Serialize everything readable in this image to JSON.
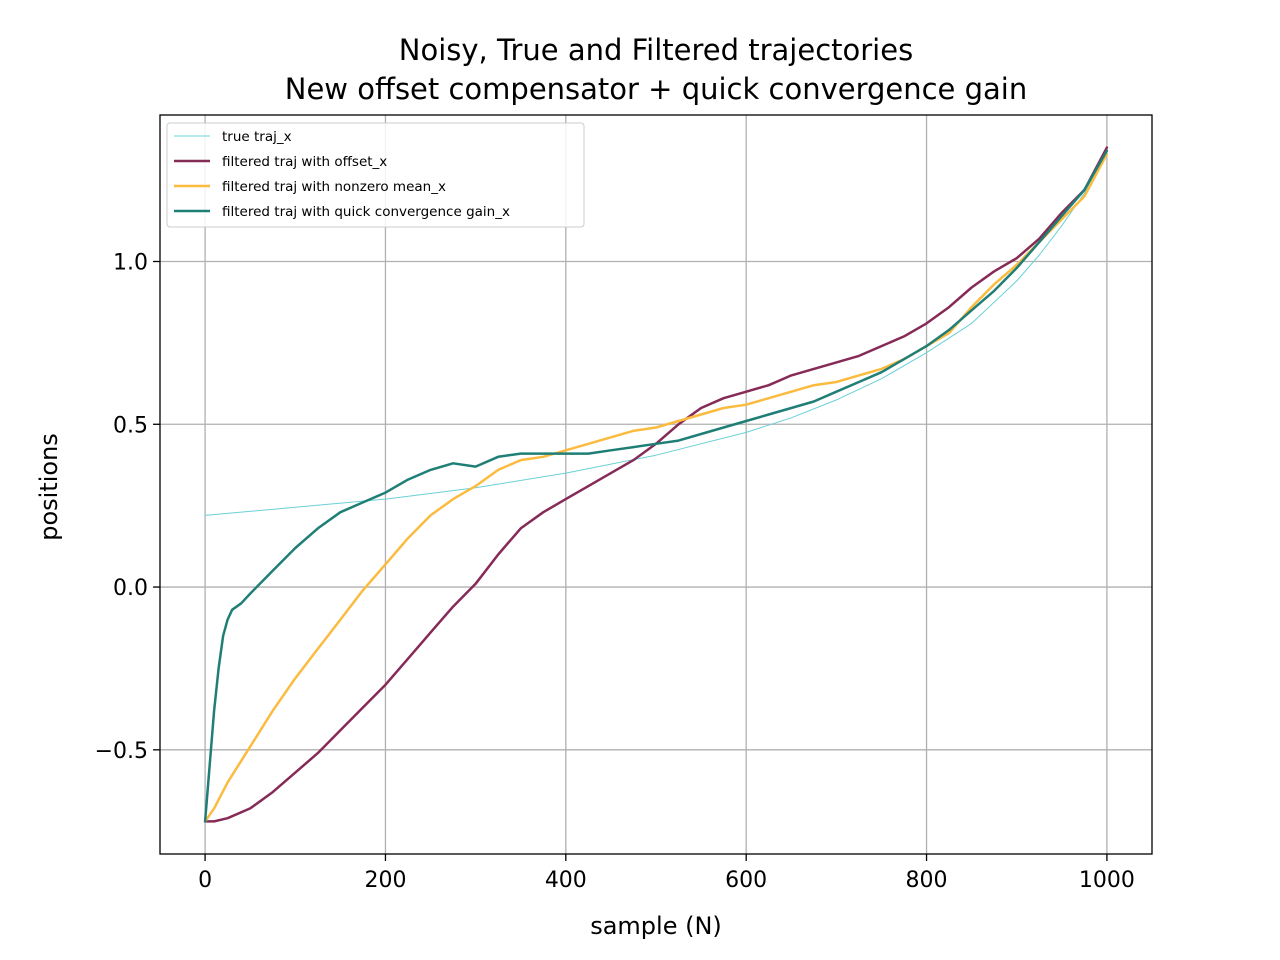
{
  "chart_data": {
    "type": "line",
    "title": [
      "Noisy, True and Filtered trajectories",
      "New offset compensator + quick convergence gain"
    ],
    "xlabel": "sample (N)",
    "ylabel": "positions",
    "xlim": [
      -50,
      1050
    ],
    "ylim": [
      -0.82,
      1.45
    ],
    "xticks": [
      0,
      200,
      400,
      600,
      800,
      1000
    ],
    "xtick_labels": [
      "0",
      "200",
      "400",
      "600",
      "800",
      "1000"
    ],
    "yticks": [
      -0.5,
      0.0,
      0.5,
      1.0
    ],
    "ytick_labels": [
      "−0.5",
      "0.0",
      "0.5",
      "1.0"
    ],
    "grid": true,
    "legend_position": "upper-left",
    "series": [
      {
        "name": "true traj_x",
        "color": "#6bd0d6",
        "width": 1,
        "x": [
          0,
          100,
          200,
          300,
          400,
          500,
          600,
          650,
          700,
          750,
          800,
          850,
          900,
          925,
          950,
          975,
          1000
        ],
        "y": [
          0.22,
          0.245,
          0.27,
          0.305,
          0.35,
          0.405,
          0.475,
          0.52,
          0.575,
          0.64,
          0.72,
          0.81,
          0.94,
          1.02,
          1.11,
          1.21,
          1.33
        ]
      },
      {
        "name": "filtered traj with offset_x",
        "color": "#862a57",
        "width": 2.5,
        "x": [
          0,
          10,
          25,
          50,
          75,
          100,
          125,
          150,
          175,
          200,
          225,
          250,
          275,
          300,
          325,
          350,
          375,
          400,
          425,
          450,
          475,
          500,
          525,
          550,
          575,
          600,
          625,
          650,
          675,
          700,
          725,
          750,
          775,
          800,
          825,
          850,
          875,
          900,
          925,
          950,
          975,
          1000
        ],
        "y": [
          -0.72,
          -0.72,
          -0.71,
          -0.68,
          -0.63,
          -0.57,
          -0.51,
          -0.44,
          -0.37,
          -0.3,
          -0.22,
          -0.14,
          -0.06,
          0.01,
          0.1,
          0.18,
          0.23,
          0.27,
          0.31,
          0.35,
          0.39,
          0.44,
          0.5,
          0.55,
          0.58,
          0.6,
          0.62,
          0.65,
          0.67,
          0.69,
          0.71,
          0.74,
          0.77,
          0.81,
          0.86,
          0.92,
          0.97,
          1.01,
          1.07,
          1.15,
          1.22,
          1.35
        ]
      },
      {
        "name": "filtered traj with nonzero mean_x",
        "color": "#fbbb3f",
        "width": 2.5,
        "x": [
          0,
          10,
          25,
          50,
          75,
          100,
          125,
          150,
          175,
          200,
          225,
          250,
          275,
          300,
          325,
          350,
          375,
          400,
          425,
          450,
          475,
          500,
          525,
          550,
          575,
          600,
          625,
          650,
          675,
          700,
          725,
          750,
          775,
          800,
          825,
          850,
          875,
          900,
          925,
          950,
          975,
          1000
        ],
        "y": [
          -0.72,
          -0.68,
          -0.6,
          -0.49,
          -0.38,
          -0.28,
          -0.19,
          -0.1,
          -0.01,
          0.07,
          0.15,
          0.22,
          0.27,
          0.31,
          0.36,
          0.39,
          0.4,
          0.42,
          0.44,
          0.46,
          0.48,
          0.49,
          0.51,
          0.53,
          0.55,
          0.56,
          0.58,
          0.6,
          0.62,
          0.63,
          0.65,
          0.67,
          0.7,
          0.74,
          0.78,
          0.86,
          0.93,
          0.99,
          1.06,
          1.13,
          1.2,
          1.33
        ]
      },
      {
        "name": "filtered traj with quick convergence gain_x",
        "color": "#1f7f76",
        "width": 2.5,
        "x": [
          0,
          5,
          10,
          15,
          20,
          25,
          30,
          40,
          50,
          75,
          100,
          125,
          150,
          175,
          200,
          225,
          250,
          275,
          300,
          325,
          350,
          375,
          400,
          425,
          450,
          475,
          500,
          525,
          550,
          575,
          600,
          625,
          650,
          675,
          700,
          725,
          750,
          775,
          800,
          825,
          850,
          875,
          900,
          925,
          950,
          975,
          1000
        ],
        "y": [
          -0.72,
          -0.55,
          -0.38,
          -0.25,
          -0.15,
          -0.1,
          -0.07,
          -0.05,
          -0.02,
          0.05,
          0.12,
          0.18,
          0.23,
          0.26,
          0.29,
          0.33,
          0.36,
          0.38,
          0.37,
          0.4,
          0.41,
          0.41,
          0.41,
          0.41,
          0.42,
          0.43,
          0.44,
          0.45,
          0.47,
          0.49,
          0.51,
          0.53,
          0.55,
          0.57,
          0.6,
          0.63,
          0.66,
          0.7,
          0.74,
          0.79,
          0.85,
          0.91,
          0.98,
          1.06,
          1.14,
          1.22,
          1.34
        ]
      }
    ]
  }
}
